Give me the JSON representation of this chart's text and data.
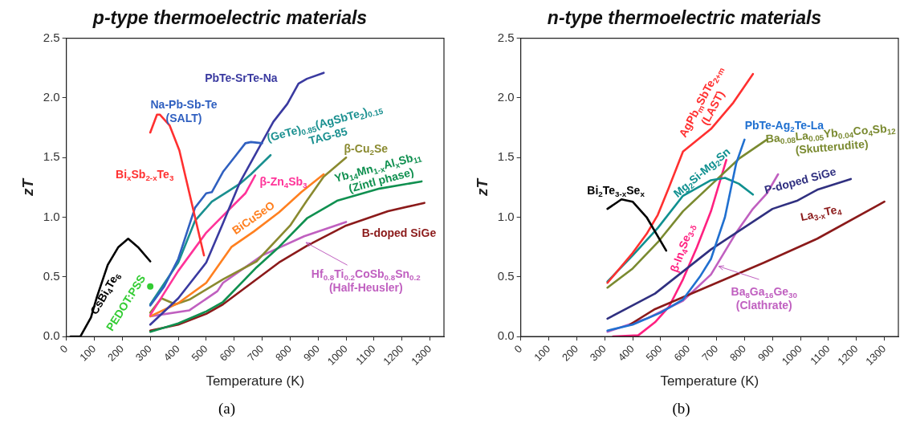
{
  "chart_data": [
    {
      "type": "line",
      "title": "p-type thermoelectric materials",
      "xlabel": "Temperature (K)",
      "ylabel": "zT",
      "marker": "none",
      "grid": false,
      "xlim": [
        0,
        1350
      ],
      "xticks": [
        0,
        100,
        200,
        300,
        400,
        500,
        600,
        700,
        800,
        900,
        1000,
        1100,
        1200,
        1300
      ],
      "ylim": [
        0,
        2.5
      ],
      "yticks": [
        {
          "value": 0,
          "label": "0.0"
        },
        {
          "value": 0.5,
          "label": "0.5"
        },
        {
          "value": 1,
          "label": "1.0"
        },
        {
          "value": 1.5,
          "label": "1.5"
        },
        {
          "value": 2,
          "label": "2.0"
        },
        {
          "value": 2.5,
          "label": "2.5"
        }
      ],
      "annotations": [
        "(a)"
      ],
      "series": [
        {
          "name": "CsBi$_{4}$Te$_{6}$",
          "color": "#000000",
          "x": [
            15,
            50,
            88,
            109,
            148,
            186,
            221,
            256,
            300
          ],
          "values": [
            0,
            0,
            0.16,
            0.33,
            0.6,
            0.75,
            0.82,
            0.75,
            0.63
          ]
        },
        {
          "name": "PEDOT:PSS",
          "type": "scatter",
          "marker": "circle",
          "color": "#33cc33",
          "x": [
            300
          ],
          "values": [
            0.42
          ]
        },
        {
          "name": "Bi$_{x}$Sb$_{2-x}$Te$_{3}$",
          "color": "#ff3030",
          "x": [
            300,
            324,
            334,
            369,
            404,
            492
          ],
          "values": [
            1.71,
            1.86,
            1.86,
            1.77,
            1.56,
            0.68
          ]
        },
        {
          "name": "Na-Pb-Sb-Te (SALT)",
          "color": "#3060c0",
          "x": [
            300,
            350,
            400,
            460,
            500,
            520,
            560,
            600,
            640,
            660,
            700
          ],
          "values": [
            0.26,
            0.42,
            0.65,
            1.08,
            1.2,
            1.21,
            1.38,
            1.5,
            1.62,
            1.63,
            1.62
          ]
        },
        {
          "name": "PbTe-SrTe-Na",
          "color": "#3a3aa0",
          "x": [
            300,
            400,
            500,
            560,
            620,
            700,
            740,
            790,
            830,
            860,
            920
          ],
          "values": [
            0.1,
            0.32,
            0.62,
            0.95,
            1.29,
            1.63,
            1.8,
            1.95,
            2.12,
            2.16,
            2.21
          ]
        },
        {
          "name": "(GeTe)$_{0.85}$(AgSbTe$_{2}$)$_{0.15}$ TAG-85",
          "color": "#1a9090",
          "x": [
            300,
            400,
            460,
            520,
            580,
            620,
            660,
            730
          ],
          "values": [
            0.27,
            0.62,
            0.97,
            1.13,
            1.22,
            1.28,
            1.36,
            1.52
          ]
        },
        {
          "name": "β-Zn$_{4}$Sb$_{3}$",
          "color": "#ff3399",
          "x": [
            300,
            400,
            500,
            580,
            640,
            675
          ],
          "values": [
            0.18,
            0.55,
            0.87,
            1.06,
            1.2,
            1.35
          ]
        },
        {
          "name": "BiCuSeO",
          "color": "#ff8020",
          "x": [
            300,
            400,
            500,
            590,
            670,
            760,
            840,
            920
          ],
          "values": [
            0.17,
            0.28,
            0.45,
            0.75,
            0.88,
            1.04,
            1.21,
            1.36
          ]
        },
        {
          "name": "β-Cu$_{2}$Se",
          "color": "#8a8a30",
          "x": [
            300,
            340,
            390,
            440,
            560,
            680,
            800,
            860,
            920,
            1000
          ],
          "values": [
            0.2,
            0.32,
            0.27,
            0.31,
            0.48,
            0.63,
            0.93,
            1.14,
            1.34,
            1.5
          ]
        },
        {
          "name": "Yb$_{14}$Mn$_{1-x}$Al$_{x}$Sb$_{11}$ (Zintl phase)",
          "color": "#109050",
          "x": [
            300,
            400,
            500,
            560,
            680,
            760,
            860,
            970,
            1120,
            1270
          ],
          "values": [
            0.04,
            0.11,
            0.21,
            0.29,
            0.58,
            0.75,
            0.99,
            1.14,
            1.24,
            1.3
          ]
        },
        {
          "name": "B-doped SiGe",
          "color": "#8b1a1a",
          "x": [
            300,
            400,
            500,
            560,
            760,
            860,
            1000,
            1150,
            1280
          ],
          "values": [
            0.05,
            0.1,
            0.19,
            0.27,
            0.62,
            0.76,
            0.93,
            1.05,
            1.12
          ]
        },
        {
          "name": "Hf$_{0.8}$Ti$_{0.2}$CoSb$_{0.8}$Sn$_{0.2}$ (Half-Heusler)",
          "color": "#c060c0",
          "x": [
            300,
            440,
            540,
            560,
            700,
            850,
            1000
          ],
          "values": [
            0.17,
            0.22,
            0.38,
            0.45,
            0.68,
            0.84,
            0.96
          ]
        }
      ]
    },
    {
      "type": "line",
      "title": "n-type thermoelectric materials",
      "xlabel": "Temperature (K)",
      "ylabel": "zT",
      "marker": "none",
      "grid": false,
      "xlim": [
        0,
        1350
      ],
      "xticks": [
        0,
        100,
        200,
        300,
        400,
        500,
        600,
        700,
        800,
        900,
        1000,
        1100,
        1200,
        1300
      ],
      "ylim": [
        0,
        2.5
      ],
      "yticks": [
        {
          "value": 0,
          "label": "0.0"
        },
        {
          "value": 0.5,
          "label": "0.5"
        },
        {
          "value": 1,
          "label": "1.0"
        },
        {
          "value": 1.5,
          "label": "1.5"
        },
        {
          "value": 2,
          "label": "2.0"
        },
        {
          "value": 2.5,
          "label": "2.5"
        }
      ],
      "annotations": [
        "(b)"
      ],
      "series": [
        {
          "name": "Bi$_{2}$Te$_{3-x}$Se$_{x}$",
          "color": "#000000",
          "x": [
            310,
            360,
            400,
            450,
            520
          ],
          "values": [
            1.07,
            1.15,
            1.13,
            1.0,
            0.72
          ]
        },
        {
          "name": "AgPb$_{m}$SbTe$_{2+m}$ (LAST)",
          "color": "#ff3030",
          "x": [
            310,
            400,
            450,
            490,
            530,
            580,
            680,
            760,
            830
          ],
          "values": [
            0.45,
            0.7,
            0.86,
            1.02,
            1.25,
            1.55,
            1.74,
            1.96,
            2.2
          ]
        },
        {
          "name": "PbTe-Ag$_{2}$Te-La",
          "color": "#2070d0",
          "x": [
            310,
            400,
            500,
            580,
            640,
            680,
            730,
            770,
            800
          ],
          "values": [
            0.05,
            0.1,
            0.2,
            0.31,
            0.5,
            0.65,
            1.0,
            1.45,
            1.65
          ]
        },
        {
          "name": "Mg$_{2}$Si-Mg$_{2}$Sn",
          "color": "#109090",
          "x": [
            310,
            400,
            490,
            580,
            680,
            730,
            780,
            830
          ],
          "values": [
            0.46,
            0.68,
            0.91,
            1.18,
            1.31,
            1.33,
            1.28,
            1.19
          ]
        },
        {
          "name": "Ba$_{0.08}$La$_{0.05}$Yb$_{0.04}$Co$_{4}$Sb$_{12}$ (Skutterudite)",
          "color": "#7a8a30",
          "x": [
            310,
            400,
            490,
            580,
            680,
            780,
            880
          ],
          "values": [
            0.41,
            0.57,
            0.79,
            1.05,
            1.27,
            1.49,
            1.65
          ]
        },
        {
          "name": "P-doped SiGe",
          "color": "#303080",
          "x": [
            310,
            480,
            680,
            900,
            990,
            1060,
            1180
          ],
          "values": [
            0.15,
            0.36,
            0.73,
            1.07,
            1.14,
            1.23,
            1.32
          ]
        },
        {
          "name": "La$_{3-x}$Te$_{4}$",
          "color": "#8b1a1a",
          "x": [
            390,
            480,
            680,
            870,
            1060,
            1300
          ],
          "values": [
            0.1,
            0.23,
            0.43,
            0.62,
            0.82,
            1.13
          ]
        },
        {
          "name": "β-In$_{4}$Se$_{3-δ}$",
          "color": "#ff2080",
          "x": [
            330,
            420,
            480,
            530,
            580,
            630,
            680,
            735
          ],
          "values": [
            0,
            0.01,
            0.12,
            0.25,
            0.48,
            0.75,
            1.05,
            1.48
          ]
        },
        {
          "name": "Ba$_{8}$Ga$_{16}$Ge$_{30}$ (Clathrate)",
          "color": "#c060c0",
          "x": [
            310,
            450,
            580,
            680,
            770,
            830,
            880,
            920
          ],
          "values": [
            0.04,
            0.15,
            0.3,
            0.52,
            0.87,
            1.07,
            1.2,
            1.36
          ]
        }
      ]
    }
  ]
}
